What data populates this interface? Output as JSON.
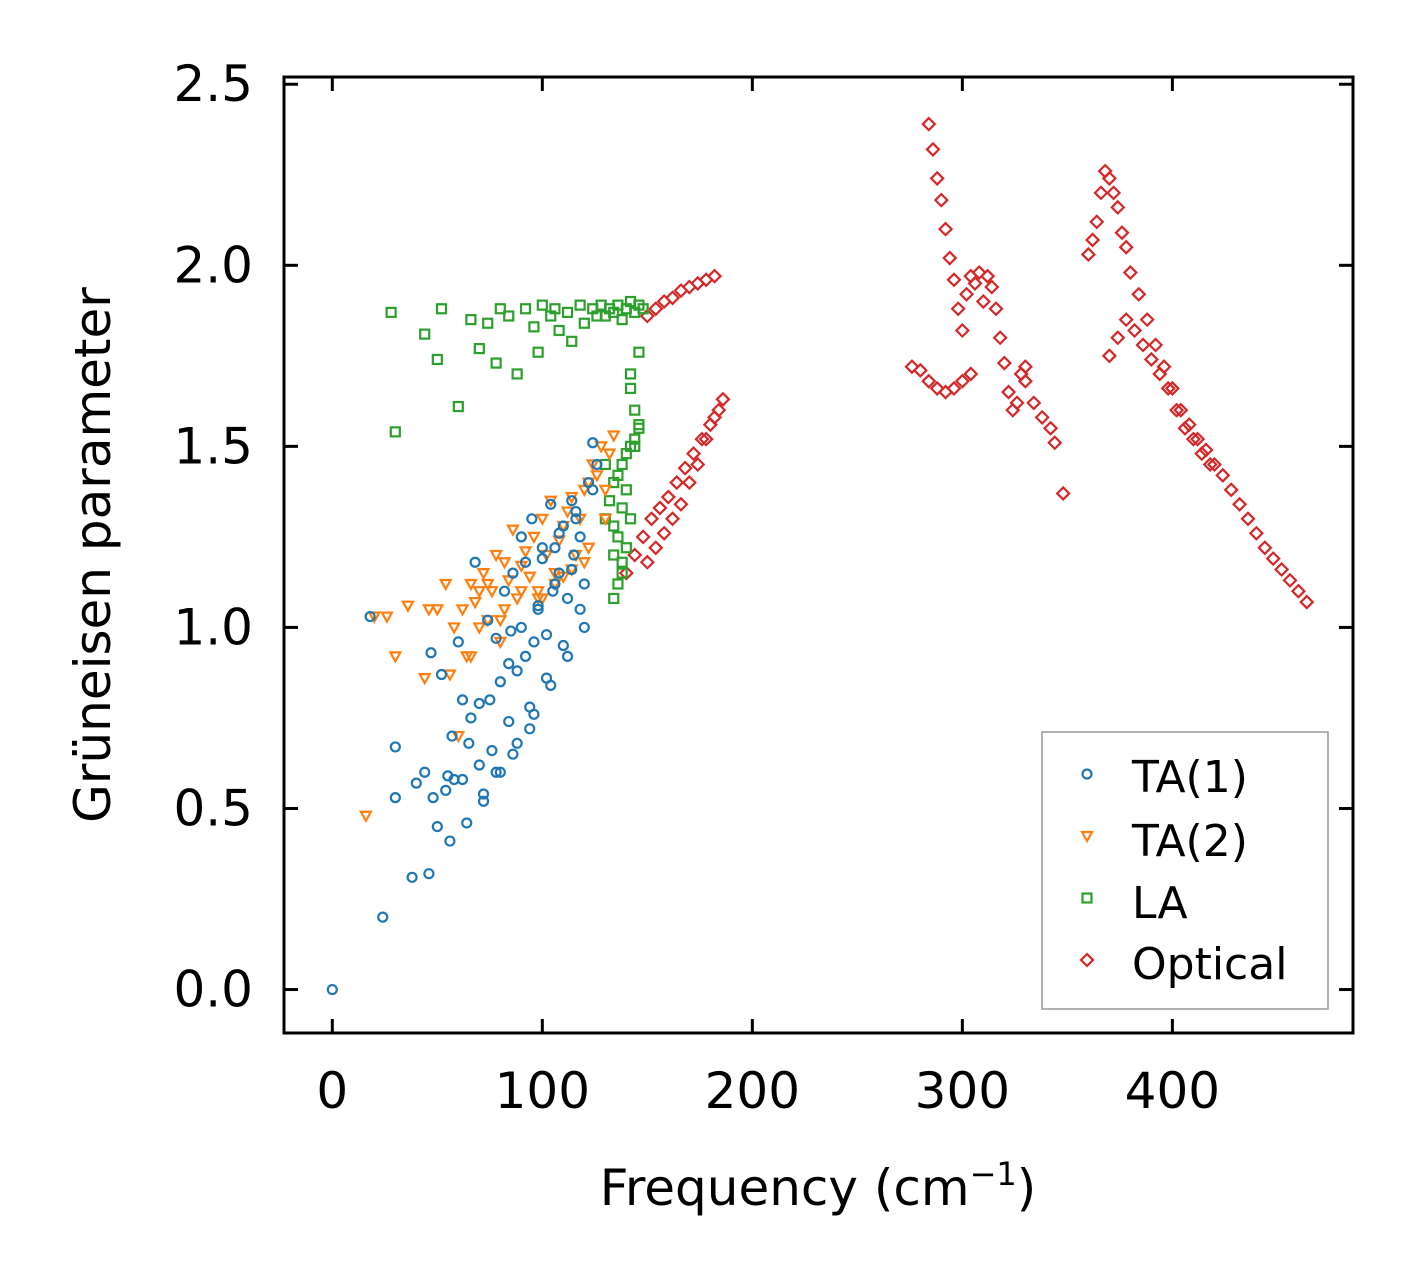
{
  "chart_data": {
    "type": "scatter",
    "title": "",
    "xlabel": "Frequency (cm",
    "xlabel_sup": "−1",
    "xlabel_close": ")",
    "ylabel": "Grüneisen parameter",
    "xlim": [
      -23,
      486
    ],
    "ylim": [
      -0.12,
      2.52
    ],
    "xticks": [
      0,
      100,
      200,
      300,
      400
    ],
    "xtick_labels": [
      "0",
      "100",
      "200",
      "300",
      "400"
    ],
    "yticks": [
      0.0,
      0.5,
      1.0,
      1.5,
      2.0,
      2.5
    ],
    "ytick_labels": [
      "0.0",
      "0.5",
      "1.0",
      "1.5",
      "2.0",
      "2.5"
    ],
    "grid": false,
    "legend_position": "lower-right",
    "series": [
      {
        "name": "TA(1)",
        "color": "#1f77b4",
        "marker": "circle",
        "x": [
          0,
          18,
          24,
          30,
          38,
          40,
          44,
          46,
          47,
          50,
          52,
          55,
          56,
          57,
          58,
          60,
          62,
          64,
          65,
          66,
          68,
          70,
          72,
          74,
          75,
          76,
          78,
          80,
          82,
          84,
          85,
          86,
          88,
          90,
          92,
          94,
          95,
          96,
          98,
          100,
          102,
          104,
          105,
          106,
          108,
          110,
          112,
          114,
          115,
          116,
          118,
          120,
          122,
          124,
          126,
          30,
          48,
          54,
          62,
          70,
          78,
          86,
          94,
          102,
          110,
          118,
          72,
          80,
          88,
          96,
          104,
          112,
          120,
          92,
          100,
          108,
          116,
          124,
          84,
          90,
          98,
          106,
          114
        ],
        "y": [
          0.0,
          1.03,
          0.2,
          0.53,
          0.31,
          0.57,
          0.6,
          0.32,
          0.93,
          0.45,
          0.87,
          0.59,
          0.41,
          0.7,
          0.58,
          0.96,
          0.8,
          0.46,
          0.68,
          0.75,
          1.18,
          0.79,
          0.54,
          1.02,
          0.8,
          0.66,
          0.97,
          0.85,
          1.1,
          0.74,
          0.99,
          1.15,
          0.88,
          1.25,
          0.92,
          0.78,
          1.3,
          0.96,
          1.05,
          1.19,
          0.98,
          1.34,
          1.1,
          1.22,
          1.15,
          1.28,
          1.08,
          1.35,
          1.2,
          1.3,
          1.25,
          1.12,
          1.4,
          1.51,
          1.45,
          0.67,
          0.53,
          0.55,
          0.58,
          0.62,
          0.6,
          0.65,
          0.72,
          0.86,
          0.95,
          1.05,
          0.52,
          0.6,
          0.68,
          0.76,
          0.84,
          0.92,
          1.0,
          1.18,
          1.22,
          1.26,
          1.32,
          1.38,
          0.9,
          1.0,
          1.06,
          1.12,
          1.16
        ]
      },
      {
        "name": "TA(2)",
        "color": "#ff7f0e",
        "marker": "triangle-down",
        "x": [
          16,
          20,
          26,
          30,
          36,
          44,
          46,
          50,
          54,
          56,
          58,
          62,
          64,
          66,
          68,
          70,
          72,
          74,
          76,
          78,
          80,
          82,
          84,
          86,
          88,
          90,
          92,
          94,
          96,
          98,
          100,
          102,
          104,
          106,
          108,
          110,
          112,
          114,
          116,
          118,
          120,
          122,
          124,
          126,
          128,
          130,
          132,
          134,
          66,
          74,
          82,
          90,
          98,
          106,
          114,
          122,
          130,
          60,
          70,
          80,
          100,
          110,
          120
        ],
        "y": [
          0.48,
          1.03,
          1.03,
          0.92,
          1.06,
          0.86,
          1.05,
          1.05,
          1.12,
          0.87,
          1.0,
          1.05,
          0.92,
          1.12,
          1.07,
          1.1,
          1.15,
          1.12,
          1.1,
          1.2,
          0.96,
          1.18,
          1.13,
          1.27,
          1.08,
          1.17,
          1.21,
          1.14,
          1.25,
          1.1,
          1.3,
          1.2,
          1.35,
          1.15,
          1.24,
          1.28,
          1.32,
          1.36,
          1.2,
          1.3,
          1.38,
          1.4,
          1.45,
          1.42,
          1.5,
          1.38,
          1.48,
          1.53,
          0.92,
          1.02,
          1.05,
          1.1,
          1.08,
          1.12,
          1.16,
          1.22,
          1.3,
          0.7,
          1.0,
          1.02,
          1.08,
          1.14,
          1.18
        ]
      },
      {
        "name": "LA",
        "color": "#2ca02c",
        "marker": "square",
        "x": [
          28,
          30,
          44,
          50,
          52,
          60,
          66,
          70,
          74,
          78,
          80,
          84,
          88,
          92,
          96,
          98,
          100,
          104,
          106,
          108,
          112,
          114,
          118,
          120,
          124,
          126,
          128,
          130,
          132,
          134,
          136,
          138,
          140,
          142,
          144,
          146,
          148,
          134,
          136,
          138,
          140,
          142,
          144,
          146,
          130,
          132,
          134,
          136,
          138,
          140,
          142,
          144,
          146,
          136,
          140,
          144,
          130,
          134,
          138,
          142,
          146,
          134,
          138,
          142
        ],
        "y": [
          1.87,
          1.54,
          1.81,
          1.74,
          1.88,
          1.61,
          1.85,
          1.77,
          1.84,
          1.73,
          1.88,
          1.86,
          1.7,
          1.88,
          1.83,
          1.76,
          1.89,
          1.86,
          1.88,
          1.82,
          1.87,
          1.79,
          1.89,
          1.84,
          1.88,
          1.86,
          1.89,
          1.86,
          1.88,
          1.87,
          1.89,
          1.85,
          1.88,
          1.9,
          1.87,
          1.89,
          1.88,
          1.08,
          1.12,
          1.18,
          1.22,
          1.3,
          1.5,
          1.56,
          1.3,
          1.35,
          1.4,
          1.42,
          1.45,
          1.48,
          1.5,
          1.52,
          1.55,
          1.25,
          1.38,
          1.6,
          1.45,
          1.28,
          1.33,
          1.7,
          1.76,
          1.2,
          1.15,
          1.66
        ]
      },
      {
        "name": "Optical",
        "color": "#d62728",
        "marker": "diamond",
        "x": [
          284,
          286,
          288,
          290,
          292,
          294,
          296,
          298,
          300,
          302,
          304,
          306,
          308,
          310,
          312,
          314,
          316,
          318,
          320,
          322,
          324,
          326,
          328,
          330,
          276,
          280,
          284,
          288,
          292,
          296,
          300,
          304,
          330,
          334,
          338,
          342,
          344,
          348,
          360,
          362,
          364,
          366,
          368,
          370,
          372,
          374,
          376,
          378,
          380,
          384,
          388,
          392,
          396,
          400,
          404,
          408,
          412,
          416,
          420,
          424,
          428,
          432,
          436,
          440,
          444,
          448,
          452,
          456,
          460,
          464,
          370,
          374,
          378,
          382,
          386,
          390,
          394,
          398,
          402,
          406,
          410,
          414,
          418,
          150,
          154,
          158,
          162,
          166,
          170,
          174,
          178,
          182,
          150,
          154,
          158,
          162,
          166,
          170,
          174,
          178,
          182,
          186,
          140,
          144,
          148,
          152,
          156,
          160,
          164,
          168,
          172,
          176,
          180,
          184
        ],
        "y": [
          2.39,
          2.32,
          2.24,
          2.18,
          2.1,
          2.02,
          1.96,
          1.88,
          1.82,
          1.92,
          1.97,
          1.95,
          1.98,
          1.9,
          1.97,
          1.94,
          1.88,
          1.8,
          1.73,
          1.65,
          1.6,
          1.62,
          1.7,
          1.72,
          1.72,
          1.71,
          1.68,
          1.66,
          1.65,
          1.66,
          1.68,
          1.7,
          1.68,
          1.62,
          1.58,
          1.55,
          1.51,
          1.37,
          2.03,
          2.07,
          2.12,
          2.2,
          2.26,
          2.24,
          2.2,
          2.16,
          2.09,
          2.05,
          1.98,
          1.92,
          1.85,
          1.78,
          1.72,
          1.66,
          1.6,
          1.56,
          1.52,
          1.49,
          1.45,
          1.42,
          1.38,
          1.34,
          1.3,
          1.26,
          1.22,
          1.19,
          1.16,
          1.13,
          1.1,
          1.07,
          1.75,
          1.8,
          1.85,
          1.82,
          1.78,
          1.74,
          1.7,
          1.66,
          1.6,
          1.55,
          1.52,
          1.48,
          1.45,
          1.86,
          1.88,
          1.9,
          1.91,
          1.93,
          1.94,
          1.95,
          1.96,
          1.97,
          1.18,
          1.22,
          1.26,
          1.3,
          1.34,
          1.4,
          1.45,
          1.52,
          1.58,
          1.63,
          1.15,
          1.2,
          1.25,
          1.3,
          1.33,
          1.36,
          1.4,
          1.44,
          1.48,
          1.52,
          1.56,
          1.6
        ]
      }
    ]
  }
}
